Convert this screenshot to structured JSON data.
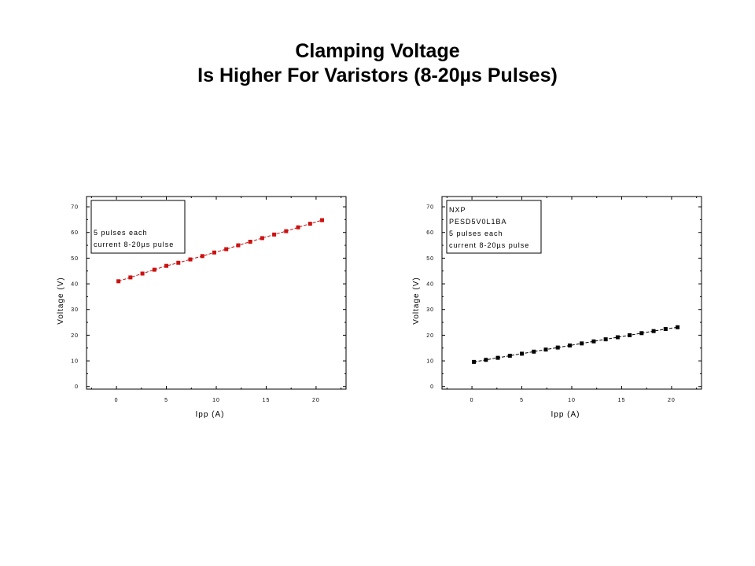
{
  "slide": {
    "title_line1": "Clamping Voltage",
    "title_line2": "Is Higher For Varistors (8-20µs Pulses)"
  },
  "chart_data": [
    {
      "type": "line",
      "xlabel": "Ipp (A)",
      "ylabel": "Voltage (V)",
      "xlim": [
        -3,
        23
      ],
      "ylim": [
        -1,
        74
      ],
      "xticks": [
        0,
        5,
        10,
        15,
        20
      ],
      "yticks": [
        0,
        10,
        20,
        30,
        40,
        50,
        60,
        70
      ],
      "xtick_labels": [
        "0",
        "5",
        "10",
        "15",
        "20"
      ],
      "ytick_labels": [
        "0",
        "10",
        "20",
        "30",
        "40",
        "50",
        "60",
        "70"
      ],
      "legend": [
        "",
        "5 pulses each",
        "current 8-20µs pulse"
      ],
      "legend_position": "top-left",
      "grid": false,
      "series": [
        {
          "color": "#cc1111",
          "marker": "square",
          "x": [
            0.2,
            1.4,
            2.6,
            3.8,
            5.0,
            6.2,
            7.4,
            8.6,
            9.8,
            11.0,
            12.2,
            13.4,
            14.6,
            15.8,
            17.0,
            18.2,
            19.4,
            20.6
          ],
          "y": [
            41,
            42.5,
            44,
            45.5,
            47,
            48.2,
            49.5,
            50.8,
            52.2,
            53.5,
            55,
            56.4,
            57.8,
            59.2,
            60.5,
            62,
            63.4,
            64.8
          ]
        }
      ]
    },
    {
      "type": "line",
      "xlabel": "Ipp (A)",
      "ylabel": "Voltage (V)",
      "xlim": [
        -3,
        23
      ],
      "ylim": [
        -1,
        74
      ],
      "xticks": [
        0,
        5,
        10,
        15,
        20
      ],
      "yticks": [
        0,
        10,
        20,
        30,
        40,
        50,
        60,
        70
      ],
      "xtick_labels": [
        "0",
        "5",
        "10",
        "15",
        "20"
      ],
      "ytick_labels": [
        "0",
        "10",
        "20",
        "30",
        "40",
        "50",
        "60",
        "70"
      ],
      "legend": [
        "NXP",
        "PESD5V0L1BA",
        "5 pulses each",
        "current 8-20µs pulse"
      ],
      "legend_position": "top-left",
      "grid": false,
      "series": [
        {
          "color": "#000000",
          "marker": "square",
          "x": [
            0.2,
            1.4,
            2.6,
            3.8,
            5.0,
            6.2,
            7.4,
            8.6,
            9.8,
            11.0,
            12.2,
            13.4,
            14.6,
            15.8,
            17.0,
            18.2,
            19.4,
            20.6
          ],
          "y": [
            9.6,
            10.4,
            11.2,
            12,
            12.8,
            13.6,
            14.4,
            15.2,
            16,
            16.8,
            17.6,
            18.4,
            19.2,
            20,
            20.8,
            21.6,
            22.4,
            23.1
          ]
        }
      ]
    }
  ]
}
